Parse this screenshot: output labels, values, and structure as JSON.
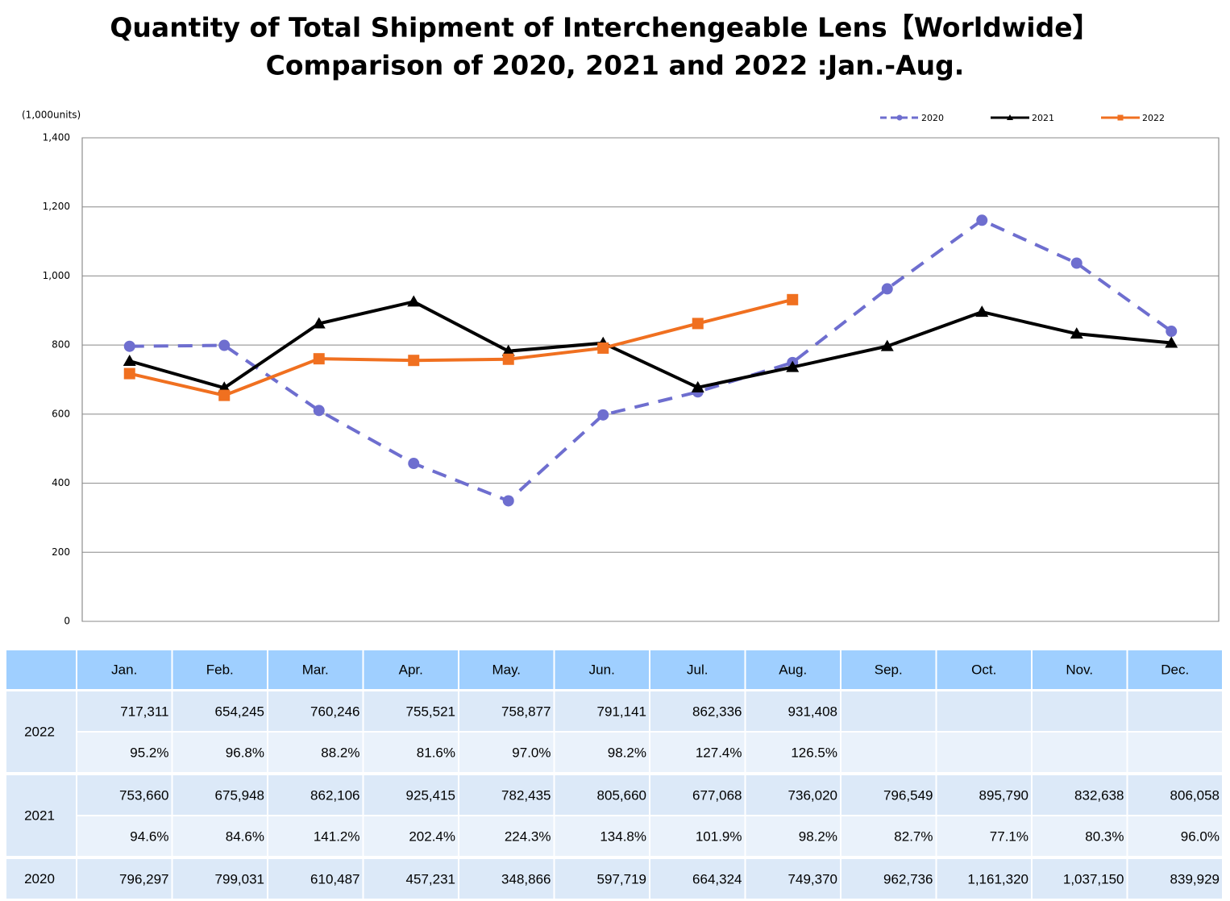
{
  "chart_data": {
    "type": "line",
    "title": "Quantity of Total Shipment of Interchengeable Lens【Worldwide】",
    "subtitle": "Comparison of 2020, 2021 and 2022 :Jan.-Aug.",
    "y_label": "(1,000units)",
    "categories": [
      "Jan.",
      "Feb.",
      "Mar.",
      "Apr.",
      "May.",
      "Jun.",
      "Jul.",
      "Aug.",
      "Sep.",
      "Oct.",
      "Nov.",
      "Dec."
    ],
    "ylim": [
      0,
      1400
    ],
    "yticks": [
      0,
      200,
      400,
      600,
      800,
      {
        "value": 1000,
        "label": "1,000"
      },
      {
        "value": 1200,
        "label": "1,200"
      },
      {
        "value": 1400,
        "label": "1,400"
      }
    ],
    "grid": true,
    "legend": "top-right",
    "series": [
      {
        "name": "2020",
        "color": "#6e6ecf",
        "marker": "circle",
        "dashed": true,
        "values": [
          796.297,
          799.031,
          610.487,
          457.231,
          348.866,
          597.719,
          664.324,
          749.37,
          962.736,
          1161.32,
          1037.15,
          839.929
        ]
      },
      {
        "name": "2021",
        "color": "#000000",
        "marker": "triangle",
        "dashed": false,
        "values": [
          753.66,
          675.948,
          862.106,
          925.415,
          782.435,
          805.66,
          677.068,
          736.02,
          796.549,
          895.79,
          832.638,
          806.058
        ]
      },
      {
        "name": "2022",
        "color": "#f07020",
        "marker": "square",
        "dashed": false,
        "values": [
          717.311,
          654.245,
          760.246,
          755.521,
          758.877,
          791.141,
          862.336,
          931.408,
          null,
          null,
          null,
          null
        ]
      }
    ]
  },
  "table": {
    "rows": [
      {
        "values": [
          "717,311",
          "654,245",
          "760,246",
          "755,521",
          "758,877",
          "791,141",
          "862,336",
          "931,408"
        ],
        "ratios": [
          "95.2%",
          "96.8%",
          "88.2%",
          "81.6%",
          "97.0%",
          "98.2%",
          "127.4%",
          "126.5%"
        ]
      },
      {
        "values": [
          "753,660",
          "675,948",
          "862,106",
          "925,415",
          "782,435",
          "805,660",
          "677,068",
          "736,020",
          "796,549",
          "895,790",
          "832,638",
          "806,058"
        ],
        "ratios": [
          "94.6%",
          "84.6%",
          "141.2%",
          "202.4%",
          "224.3%",
          "134.8%",
          "101.9%",
          "98.2%",
          "82.7%",
          "77.1%",
          "80.3%",
          "96.0%"
        ]
      },
      {
        "values": [
          "796,297",
          "799,031",
          "610,487",
          "457,231",
          "348,866",
          "597,719",
          "664,324",
          "749,370",
          "962,736",
          "1,161,320",
          "1,037,150",
          "839,929"
        ]
      }
    ]
  }
}
